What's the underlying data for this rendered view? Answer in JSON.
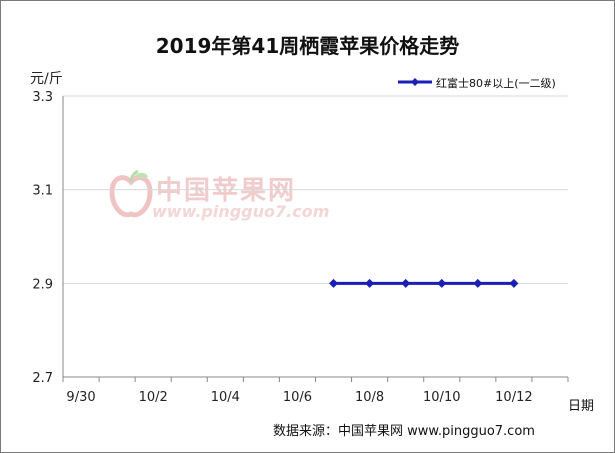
{
  "chart_data": {
    "type": "line",
    "title": "2019年第41周栖霞苹果价格走势",
    "ylabel": "元/斤",
    "xlabel": "日期",
    "ylim": [
      2.7,
      3.3
    ],
    "yticks": [
      "3.3",
      "3.1",
      "2.9",
      "2.7"
    ],
    "xticks": [
      "9/30",
      "10/2",
      "10/4",
      "10/6",
      "10/8",
      "10/10",
      "10/12"
    ],
    "x": [
      "10/7",
      "10/8",
      "10/9",
      "10/10",
      "10/11",
      "10/12"
    ],
    "series": [
      {
        "name": "红富士80#以上(一二级)",
        "values": [
          2.9,
          2.9,
          2.9,
          2.9,
          2.9,
          2.9
        ],
        "color": "#1a1fb5"
      }
    ],
    "grid": true,
    "legend_position": "top-right"
  },
  "watermark": {
    "name": "中国苹果网",
    "url": "www.pingguo7.com"
  },
  "source": "数据来源：中国苹果网 www.pingguo7.com"
}
